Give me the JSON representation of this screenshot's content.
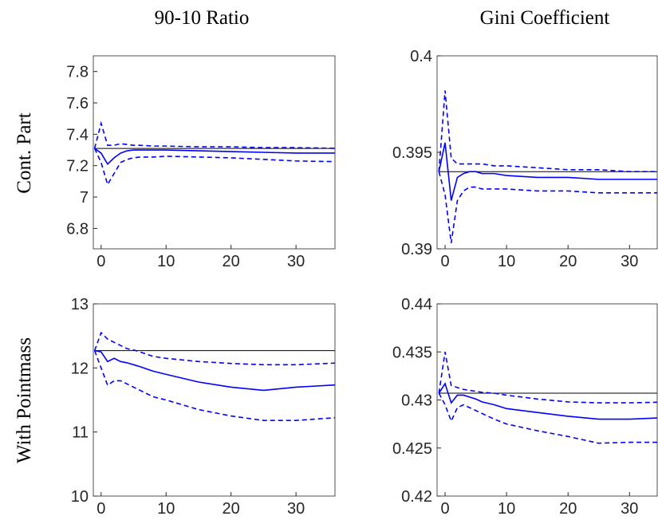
{
  "column_titles": [
    "90-10 Ratio",
    "Gini Coefficient"
  ],
  "row_labels": [
    "Cont. Part",
    "With Pointmass"
  ],
  "chart_data": [
    {
      "type": "line",
      "x": [
        -1,
        0,
        1,
        2,
        3,
        4,
        5,
        6,
        8,
        10,
        15,
        20,
        25,
        30,
        37
      ],
      "xlim": [
        -1.2,
        36
      ],
      "xticks": [
        0,
        10,
        20,
        30
      ],
      "ylim": [
        6.67,
        7.9
      ],
      "yticks": [
        6.8,
        7,
        7.2,
        7.4,
        7.6,
        7.8
      ],
      "series": [
        {
          "color": "#000000",
          "dash": false,
          "values": [
            7.31,
            7.31,
            7.31,
            7.31,
            7.31,
            7.31,
            7.31,
            7.31,
            7.31,
            7.31,
            7.31,
            7.31,
            7.31,
            7.31,
            7.31
          ]
        },
        {
          "color": "#0000ff",
          "dash": false,
          "values": [
            7.31,
            7.28,
            7.21,
            7.25,
            7.28,
            7.295,
            7.3,
            7.3,
            7.3,
            7.3,
            7.295,
            7.29,
            7.285,
            7.28,
            7.28
          ]
        },
        {
          "color": "#0000ff",
          "dash": true,
          "values": [
            7.31,
            7.47,
            7.33,
            7.33,
            7.34,
            7.335,
            7.33,
            7.33,
            7.325,
            7.325,
            7.32,
            7.32,
            7.315,
            7.315,
            7.31
          ]
        },
        {
          "color": "#0000ff",
          "dash": true,
          "values": [
            7.31,
            7.22,
            7.08,
            7.15,
            7.22,
            7.24,
            7.25,
            7.255,
            7.255,
            7.26,
            7.255,
            7.25,
            7.24,
            7.23,
            7.225
          ]
        }
      ]
    },
    {
      "type": "line",
      "x": [
        -1,
        0,
        1,
        2,
        3,
        4,
        5,
        6,
        8,
        10,
        15,
        20,
        25,
        30,
        37
      ],
      "xlim": [
        -1.3,
        34.5
      ],
      "xticks": [
        0,
        10,
        20,
        30
      ],
      "ylim": [
        0.39,
        0.4
      ],
      "yticks": [
        0.39,
        0.395,
        0.4
      ],
      "series": [
        {
          "color": "#000000",
          "dash": false,
          "values": [
            0.394,
            0.394,
            0.394,
            0.394,
            0.394,
            0.394,
            0.394,
            0.394,
            0.394,
            0.394,
            0.394,
            0.394,
            0.394,
            0.394,
            0.394
          ]
        },
        {
          "color": "#0000ff",
          "dash": false,
          "values": [
            0.394,
            0.3955,
            0.3925,
            0.3937,
            0.3939,
            0.394,
            0.394,
            0.3939,
            0.3939,
            0.3938,
            0.3937,
            0.3937,
            0.3936,
            0.3936,
            0.3936
          ]
        },
        {
          "color": "#0000ff",
          "dash": true,
          "values": [
            0.394,
            0.3982,
            0.3947,
            0.3944,
            0.3944,
            0.3944,
            0.3944,
            0.3944,
            0.3943,
            0.3943,
            0.3942,
            0.3941,
            0.3941,
            0.394,
            0.394
          ]
        },
        {
          "color": "#0000ff",
          "dash": true,
          "values": [
            0.394,
            0.3928,
            0.3903,
            0.3925,
            0.393,
            0.3932,
            0.3932,
            0.3931,
            0.3931,
            0.3931,
            0.393,
            0.393,
            0.3929,
            0.3929,
            0.3929
          ]
        }
      ]
    },
    {
      "type": "line",
      "x": [
        -1,
        0,
        1,
        2,
        3,
        4,
        5,
        6,
        8,
        10,
        15,
        20,
        25,
        30,
        37
      ],
      "xlim": [
        -1.2,
        36
      ],
      "xticks": [
        0,
        10,
        20,
        30
      ],
      "ylim": [
        10,
        13
      ],
      "yticks": [
        10,
        11,
        12,
        13
      ],
      "series": [
        {
          "color": "#000000",
          "dash": false,
          "values": [
            12.27,
            12.27,
            12.27,
            12.27,
            12.27,
            12.27,
            12.27,
            12.27,
            12.27,
            12.27,
            12.27,
            12.27,
            12.27,
            12.27,
            12.27
          ]
        },
        {
          "color": "#0000ff",
          "dash": false,
          "values": [
            12.27,
            12.25,
            12.1,
            12.15,
            12.1,
            12.08,
            12.05,
            12.02,
            11.95,
            11.9,
            11.78,
            11.7,
            11.65,
            11.7,
            11.74
          ]
        },
        {
          "color": "#0000ff",
          "dash": true,
          "values": [
            12.27,
            12.55,
            12.45,
            12.4,
            12.35,
            12.3,
            12.28,
            12.25,
            12.18,
            12.15,
            12.1,
            12.07,
            12.05,
            12.05,
            12.08
          ]
        },
        {
          "color": "#0000ff",
          "dash": true,
          "values": [
            12.27,
            12.0,
            11.73,
            11.8,
            11.8,
            11.75,
            11.7,
            11.65,
            11.55,
            11.5,
            11.35,
            11.25,
            11.18,
            11.18,
            11.23
          ]
        }
      ]
    },
    {
      "type": "line",
      "x": [
        -1,
        0,
        1,
        2,
        3,
        4,
        5,
        6,
        8,
        10,
        15,
        20,
        25,
        30,
        37
      ],
      "xlim": [
        -1.3,
        34.5
      ],
      "xticks": [
        0,
        10,
        20,
        30
      ],
      "ylim": [
        0.42,
        0.44
      ],
      "yticks": [
        0.42,
        0.425,
        0.43,
        0.435,
        0.44
      ],
      "series": [
        {
          "color": "#000000",
          "dash": false,
          "values": [
            0.4307,
            0.4307,
            0.4307,
            0.4307,
            0.4307,
            0.4307,
            0.4307,
            0.4307,
            0.4307,
            0.4307,
            0.4307,
            0.4307,
            0.4307,
            0.4307,
            0.4307
          ]
        },
        {
          "color": "#0000ff",
          "dash": false,
          "values": [
            0.4307,
            0.4317,
            0.4297,
            0.4305,
            0.4305,
            0.4303,
            0.4301,
            0.4298,
            0.4295,
            0.4291,
            0.4287,
            0.4283,
            0.428,
            0.428,
            0.4282
          ]
        },
        {
          "color": "#0000ff",
          "dash": true,
          "values": [
            0.4307,
            0.435,
            0.4315,
            0.4313,
            0.4311,
            0.431,
            0.4309,
            0.4308,
            0.4307,
            0.4305,
            0.4301,
            0.4298,
            0.4297,
            0.4297,
            0.4298
          ]
        },
        {
          "color": "#0000ff",
          "dash": true,
          "values": [
            0.4307,
            0.4295,
            0.4278,
            0.4292,
            0.4295,
            0.4292,
            0.4289,
            0.4286,
            0.428,
            0.4275,
            0.4268,
            0.4262,
            0.4255,
            0.4256,
            0.4256
          ]
        }
      ]
    }
  ]
}
